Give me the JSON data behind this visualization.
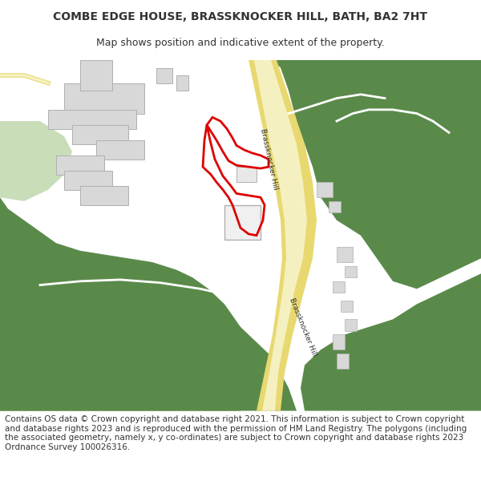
{
  "title": "COMBE EDGE HOUSE, BRASSKNOCKER HILL, BATH, BA2 7HT",
  "subtitle": "Map shows position and indicative extent of the property.",
  "footer": "Contains OS data © Crown copyright and database right 2021. This information is subject to Crown copyright and database rights 2023 and is reproduced with the permission of HM Land Registry. The polygons (including the associated geometry, namely x, y co-ordinates) are subject to Crown copyright and database rights 2023 Ordnance Survey 100026316.",
  "background_color": "#ffffff",
  "map_bg": "#ffffff",
  "title_fontsize": 10,
  "subtitle_fontsize": 9,
  "footer_fontsize": 7.5,
  "green_color": "#5a8a4a",
  "light_green_color": "#c8ddb8",
  "road_color": "#f5f0c0",
  "road_border_color": "#e8d870",
  "building_color": "#d8d8d8",
  "building_border_color": "#b0b0b0",
  "red_outline_color": "#dd0000",
  "white_path_color": "#ffffff",
  "text_color": "#333333"
}
